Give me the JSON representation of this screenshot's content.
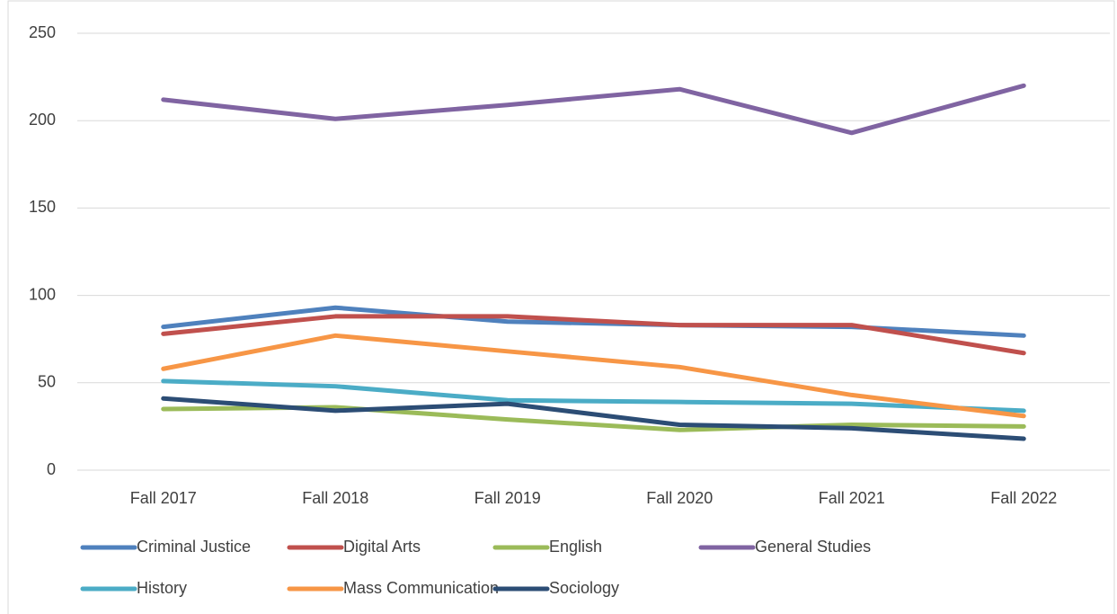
{
  "chart_data": {
    "type": "line",
    "categories": [
      "Fall 2017",
      "Fall 2018",
      "Fall 2019",
      "Fall 2020",
      "Fall 2021",
      "Fall 2022"
    ],
    "series": [
      {
        "name": "Criminal Justice",
        "color": "#4f81bd",
        "values": [
          82,
          93,
          85,
          83,
          82,
          77
        ]
      },
      {
        "name": "Digital Arts",
        "color": "#c0504d",
        "values": [
          78,
          88,
          88,
          83,
          83,
          67
        ]
      },
      {
        "name": "English",
        "color": "#9bbb59",
        "values": [
          35,
          36,
          29,
          23,
          26,
          25
        ]
      },
      {
        "name": "General Studies",
        "color": "#8064a2",
        "values": [
          212,
          201,
          209,
          218,
          193,
          220
        ]
      },
      {
        "name": "History",
        "color": "#4bacc6",
        "values": [
          51,
          48,
          40,
          39,
          38,
          34
        ]
      },
      {
        "name": "Mass Communication",
        "color": "#f79646",
        "values": [
          58,
          77,
          68,
          59,
          43,
          31
        ]
      },
      {
        "name": "Sociology",
        "color": "#2c4d75",
        "values": [
          41,
          34,
          38,
          26,
          24,
          18
        ]
      }
    ],
    "ylim": [
      0,
      250
    ],
    "yticks": [
      0,
      50,
      100,
      150,
      200,
      250
    ],
    "grid": true,
    "legend": "bottom"
  }
}
